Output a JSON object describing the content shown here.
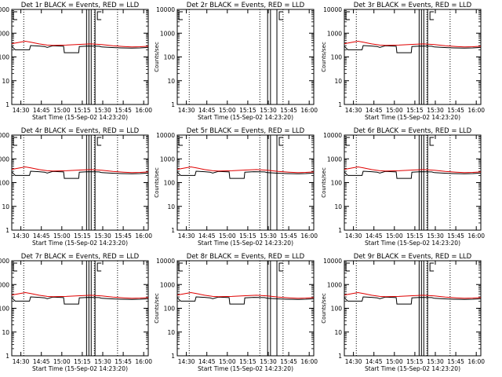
{
  "colors": {
    "events": "#000000",
    "lld": "#e00000",
    "background": "#ffffff",
    "axes": "#000000"
  },
  "shared": {
    "ylabel": "Counts/sec",
    "xlabel": "Start Time (15-Sep-02 14:23:20)",
    "xticks": [
      "14:30",
      "14:45",
      "15:00",
      "15:15",
      "15:30",
      "15:45",
      "16:00"
    ],
    "yticks": [
      "1",
      "10",
      "100",
      "1000",
      "10000"
    ]
  },
  "chart_data": [
    {
      "type": "line",
      "title": "Det 1r BLACK = Events, RED = LLD",
      "scale_y": "log",
      "ylim": [
        1,
        10000
      ],
      "xlim": [
        "14:23:20",
        "16:03:20"
      ],
      "has_data": true,
      "series": [
        {
          "name": "Events",
          "values": "black"
        },
        {
          "name": "LLD",
          "values": "red"
        }
      ]
    },
    {
      "type": "line",
      "title": "Det 2r BLACK = Events, RED = LLD",
      "scale_y": "log",
      "ylim": [
        1,
        10000
      ],
      "xlim": [
        "14:23:20",
        "16:03:20"
      ],
      "has_data": false,
      "series": []
    },
    {
      "type": "line",
      "title": "Det 3r BLACK = Events, RED = LLD",
      "scale_y": "log",
      "ylim": [
        1,
        10000
      ],
      "xlim": [
        "14:23:20",
        "16:03:20"
      ],
      "has_data": true,
      "series": [
        {
          "name": "Events",
          "values": "black"
        },
        {
          "name": "LLD",
          "values": "red"
        }
      ]
    },
    {
      "type": "line",
      "title": "Det 4r BLACK = Events, RED = LLD",
      "scale_y": "log",
      "ylim": [
        1,
        10000
      ],
      "xlim": [
        "14:23:20",
        "16:03:20"
      ],
      "has_data": true,
      "series": [
        {
          "name": "Events",
          "values": "black"
        },
        {
          "name": "LLD",
          "values": "red"
        }
      ]
    },
    {
      "type": "line",
      "title": "Det 5r BLACK = Events, RED = LLD",
      "scale_y": "log",
      "ylim": [
        1,
        10000
      ],
      "xlim": [
        "14:23:20",
        "16:03:20"
      ],
      "has_data": true,
      "series": [
        {
          "name": "Events",
          "values": "black"
        },
        {
          "name": "LLD",
          "values": "red"
        }
      ]
    },
    {
      "type": "line",
      "title": "Det 6r BLACK = Events, RED = LLD",
      "scale_y": "log",
      "ylim": [
        1,
        10000
      ],
      "xlim": [
        "14:23:20",
        "16:03:20"
      ],
      "has_data": true,
      "series": [
        {
          "name": "Events",
          "values": "black"
        },
        {
          "name": "LLD",
          "values": "red"
        }
      ]
    },
    {
      "type": "line",
      "title": "Det 7r BLACK = Events, RED = LLD",
      "scale_y": "log",
      "ylim": [
        1,
        10000
      ],
      "xlim": [
        "14:23:20",
        "16:03:20"
      ],
      "has_data": true,
      "series": [
        {
          "name": "Events",
          "values": "black"
        },
        {
          "name": "LLD",
          "values": "red"
        }
      ]
    },
    {
      "type": "line",
      "title": "Det 8r BLACK = Events, RED = LLD",
      "scale_y": "log",
      "ylim": [
        1,
        10000
      ],
      "xlim": [
        "14:23:20",
        "16:03:20"
      ],
      "has_data": true,
      "series": [
        {
          "name": "Events",
          "values": "black"
        },
        {
          "name": "LLD",
          "values": "red"
        }
      ]
    },
    {
      "type": "line",
      "title": "Det 9r BLACK = Events, RED = LLD",
      "scale_y": "log",
      "ylim": [
        1,
        10000
      ],
      "xlim": [
        "14:23:20",
        "16:03:20"
      ],
      "has_data": true,
      "series": [
        {
          "name": "Events",
          "values": "black"
        },
        {
          "name": "LLD",
          "values": "red"
        }
      ]
    }
  ]
}
